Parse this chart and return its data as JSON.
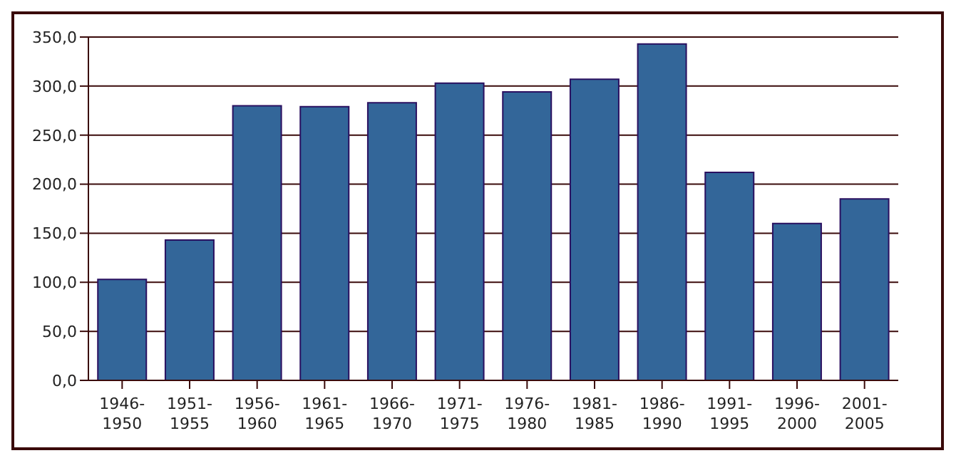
{
  "chart_data": {
    "type": "bar",
    "categories": [
      "1946-1950",
      "1951-1955",
      "1956-1960",
      "1961-1965",
      "1966-1970",
      "1971-1975",
      "1976-1980",
      "1981-1985",
      "1986-1990",
      "1991-1995",
      "1996-2000",
      "2001-2005"
    ],
    "values": [
      103,
      143,
      280,
      279,
      283,
      303,
      294,
      307,
      343,
      212,
      160,
      185
    ],
    "color": "#336699",
    "ylim": [
      0,
      350
    ],
    "yticks": [
      {
        "value": 0,
        "label": "0,0"
      },
      {
        "value": 50,
        "label": "50,0"
      },
      {
        "value": 100,
        "label": "100,0"
      },
      {
        "value": 150,
        "label": "150,0"
      },
      {
        "value": 200,
        "label": "200,0"
      },
      {
        "value": 250,
        "label": "250,0"
      },
      {
        "value": 300,
        "label": "300,0"
      },
      {
        "value": 350,
        "label": "350,0"
      }
    ],
    "grid": "y"
  }
}
